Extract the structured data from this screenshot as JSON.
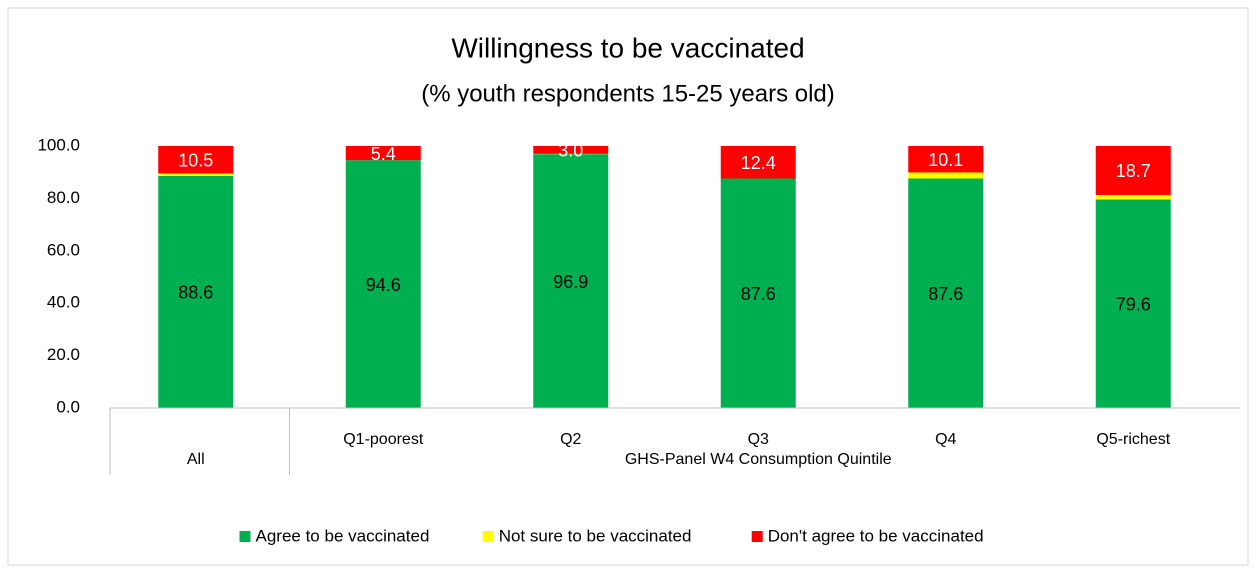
{
  "chart_data": {
    "type": "stacked_bar",
    "title": "Willingness to be vaccinated",
    "subtitle": "(% youth respondents 15-25 years old)",
    "categories": [
      null,
      "Q1-poorest",
      "Q2",
      "Q3",
      "Q4",
      "Q5-richest"
    ],
    "category_groups": [
      {
        "name": "All",
        "count": 1
      },
      {
        "name": "GHS-Panel W4 Consumption Quintile",
        "count": 5
      }
    ],
    "series": [
      {
        "name": "Agree to be vaccinated",
        "color": "#00b050",
        "values": [
          88.6,
          94.6,
          96.9,
          87.6,
          87.6,
          79.6
        ],
        "show_labels": true
      },
      {
        "name": "Not sure to be vaccinated",
        "color": "#ffff00",
        "values": [
          0.9,
          0,
          0.1,
          0,
          2.3,
          1.7
        ],
        "show_labels": false
      },
      {
        "name": "Don't agree to be vaccinated",
        "color": "#ff0000",
        "values": [
          10.5,
          5.4,
          3.0,
          12.4,
          10.1,
          18.7
        ],
        "value_labels": [
          "10.5",
          "5.4",
          "3.0",
          "12.4",
          "10.1",
          "18.7"
        ],
        "show_labels": true
      }
    ],
    "ylim": [
      0,
      100
    ],
    "yticks": [
      {
        "value": 0,
        "label": "0.0"
      },
      {
        "value": 20,
        "label": "20.0"
      },
      {
        "value": 40,
        "label": "40.0"
      },
      {
        "value": 60,
        "label": "60.0"
      },
      {
        "value": 80,
        "label": "80.0"
      },
      {
        "value": 100,
        "label": "100.0"
      }
    ],
    "grid": false,
    "legend": "bottom"
  }
}
